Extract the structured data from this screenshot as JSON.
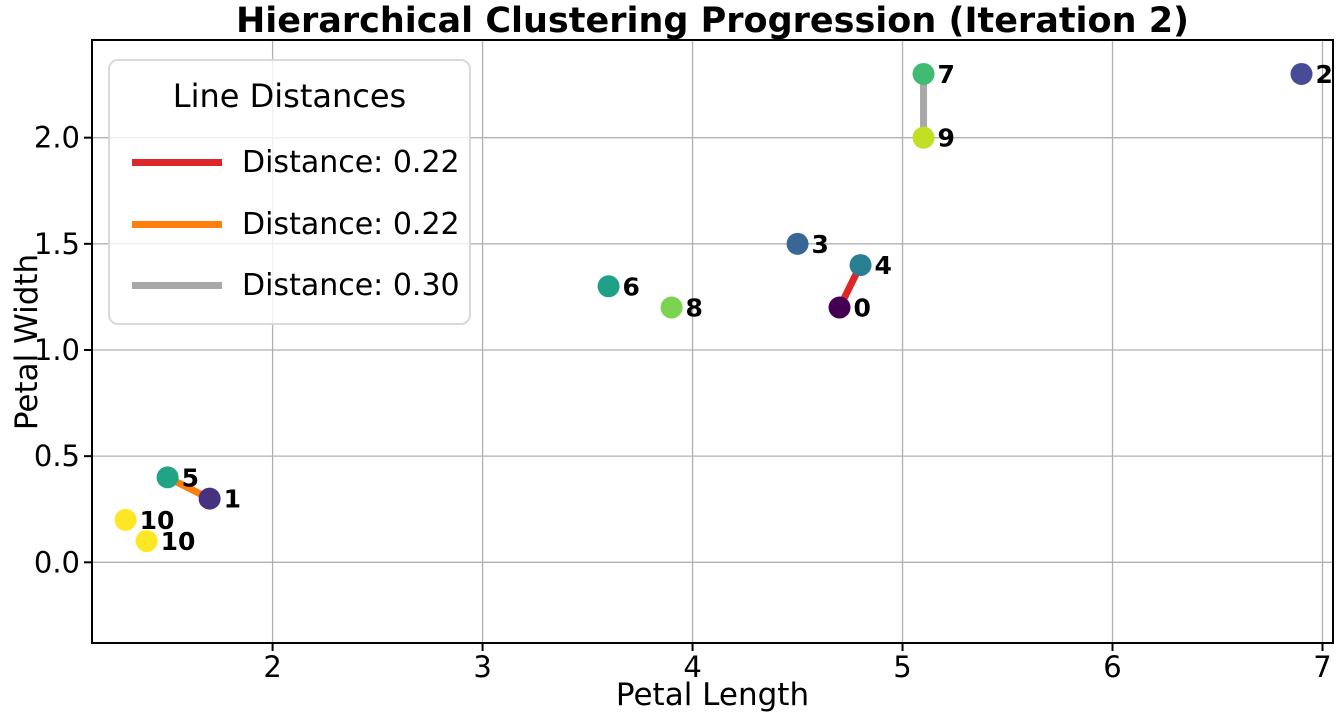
{
  "chart_data": {
    "type": "scatter",
    "title": "Hierarchical Clustering Progression (Iteration 2)",
    "xlabel": "Petal Length",
    "ylabel": "Petal Width",
    "xlim": [
      1.14,
      7.05
    ],
    "ylim": [
      -0.38,
      2.46
    ],
    "xticks": [
      2,
      3,
      4,
      5,
      6,
      7
    ],
    "xtick_labels": [
      "2",
      "3",
      "4",
      "5",
      "6",
      "7"
    ],
    "yticks": [
      0.0,
      0.5,
      1.0,
      1.5,
      2.0
    ],
    "ytick_labels": [
      "0.0",
      "0.5",
      "1.0",
      "1.5",
      "2.0"
    ],
    "grid": true,
    "grid_color": "#b0b0b0",
    "points": [
      {
        "label": "0",
        "x": 4.7,
        "y": 1.2,
        "color": "#440154"
      },
      {
        "label": "1",
        "x": 1.7,
        "y": 0.3,
        "color": "#46327e"
      },
      {
        "label": "2",
        "x": 6.9,
        "y": 2.3,
        "color": "#464d96"
      },
      {
        "label": "3",
        "x": 4.5,
        "y": 1.5,
        "color": "#386795"
      },
      {
        "label": "4",
        "x": 4.8,
        "y": 1.4,
        "color": "#2a7f93"
      },
      {
        "label": "5",
        "x": 1.5,
        "y": 0.4,
        "color": "#20a386"
      },
      {
        "label": "6",
        "x": 3.6,
        "y": 1.3,
        "color": "#1fa187"
      },
      {
        "label": "7",
        "x": 5.1,
        "y": 2.3,
        "color": "#3fbc71"
      },
      {
        "label": "8",
        "x": 3.9,
        "y": 1.2,
        "color": "#7bd34f"
      },
      {
        "label": "9",
        "x": 5.1,
        "y": 2.0,
        "color": "#c2df23"
      },
      {
        "label": "10",
        "x": 1.3,
        "y": 0.2,
        "color": "#fde725"
      },
      {
        "label": "10",
        "x": 1.4,
        "y": 0.1,
        "color": "#fde725"
      }
    ],
    "lines": [
      {
        "from": [
          4.7,
          1.2
        ],
        "to": [
          4.8,
          1.4
        ],
        "color": "#dc2627",
        "legend_label": "Distance: 0.22"
      },
      {
        "from": [
          1.5,
          0.4
        ],
        "to": [
          1.7,
          0.3
        ],
        "color": "#ff7f0e",
        "legend_label": "Distance: 0.22"
      },
      {
        "from": [
          5.1,
          2.3
        ],
        "to": [
          5.1,
          2.0
        ],
        "color": "#a8a8a8",
        "legend_label": "Distance: 0.30"
      }
    ],
    "legend": {
      "title": "Line Distances",
      "position": "upper left",
      "entries": [
        {
          "label": "Distance: 0.22",
          "color": "#dc2627"
        },
        {
          "label": "Distance: 0.22",
          "color": "#ff7f0e"
        },
        {
          "label": "Distance: 0.30",
          "color": "#a8a8a8"
        }
      ]
    }
  }
}
